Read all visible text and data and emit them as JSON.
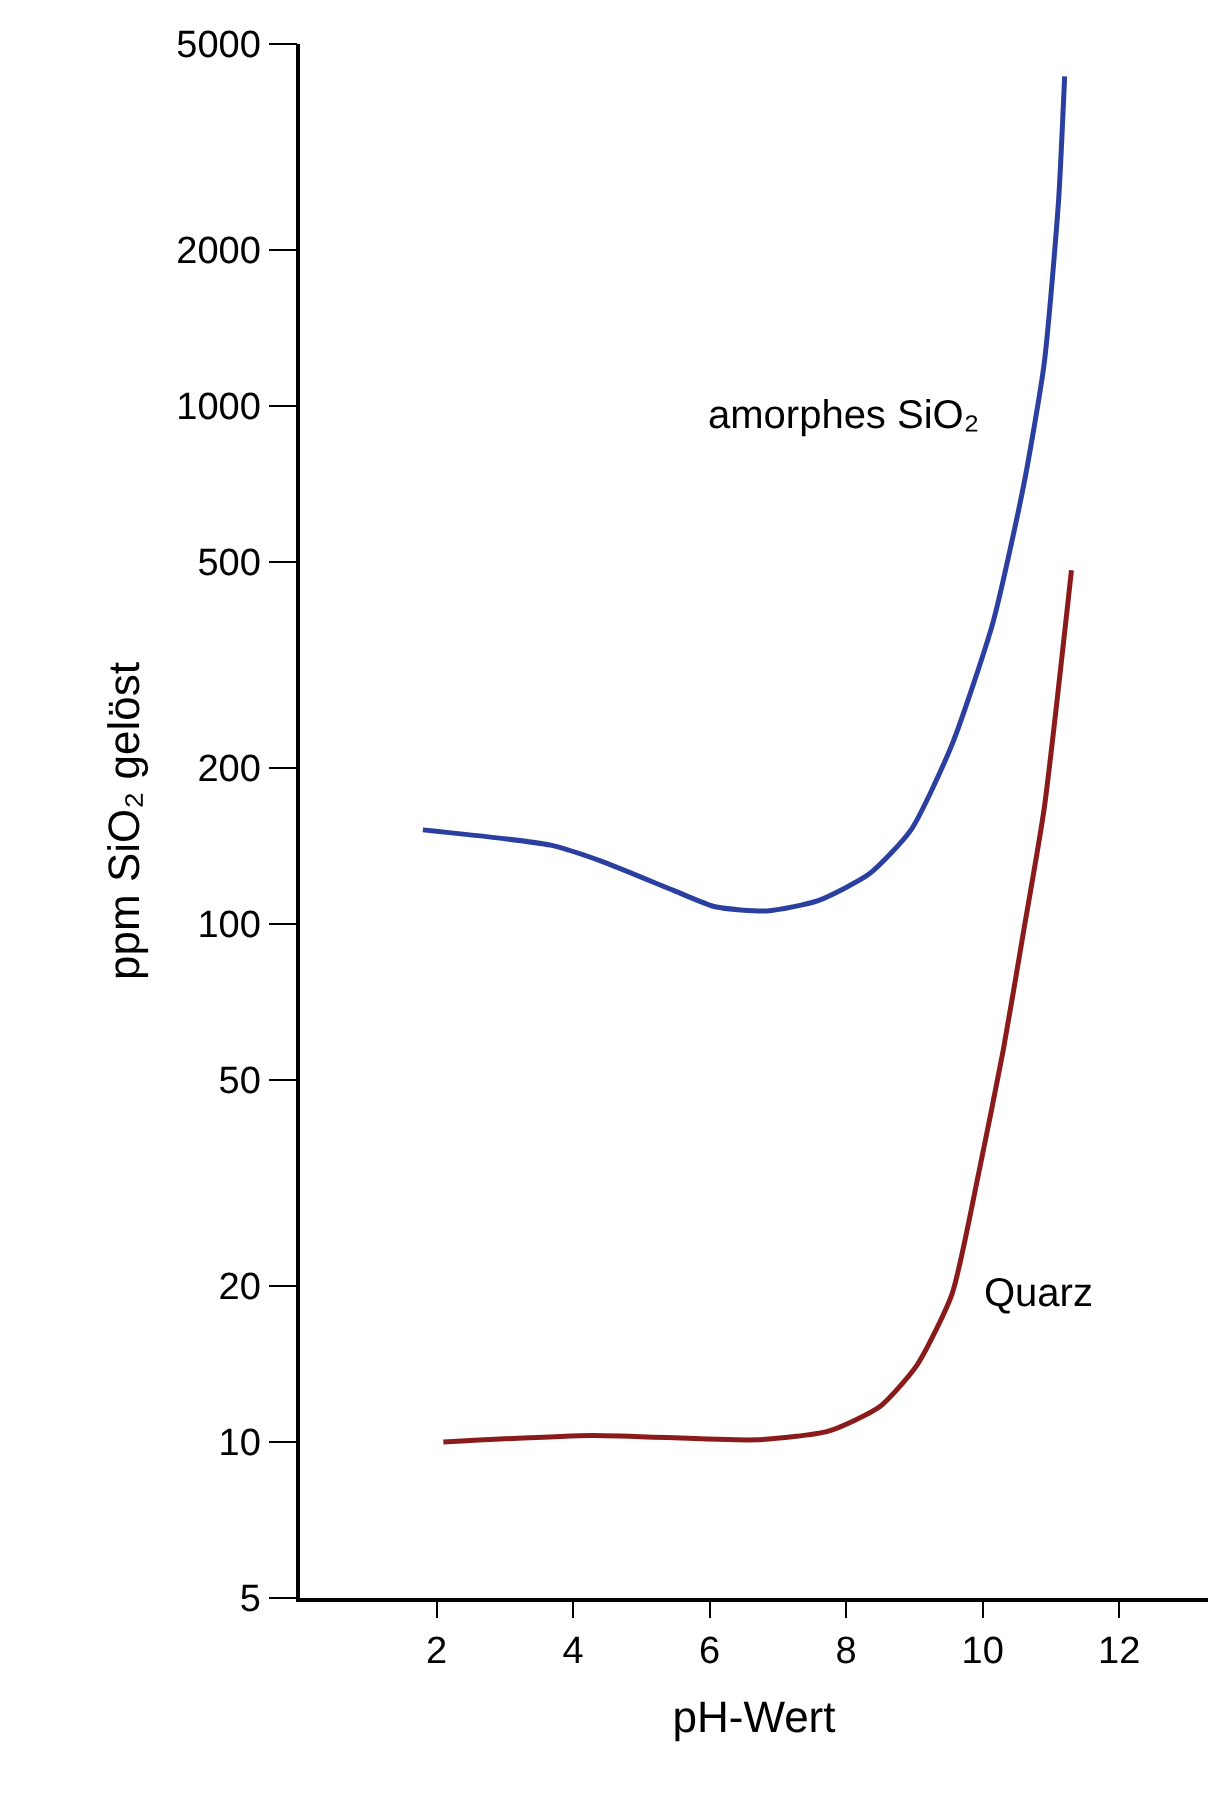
{
  "chart_data": {
    "type": "line",
    "xlabel": "pH-Wert",
    "ylabel": "ppm SiO₂ gelöst",
    "log": "y",
    "xlim": [
      0,
      13.3
    ],
    "xticks": [
      2,
      4,
      6,
      8,
      10,
      12
    ],
    "ylim": [
      5,
      5000
    ],
    "yticks": [
      5,
      10,
      20,
      50,
      100,
      200,
      500,
      1000,
      2000,
      5000
    ],
    "legend": false,
    "marker": "none",
    "line_style": "solid",
    "series": [
      {
        "name": "amorphes SiO₂",
        "color": "#2b3fa0",
        "x": [
          1.8,
          3.67,
          4.43,
          5.48,
          6.08,
          6.84,
          7.59,
          8.34,
          8.95,
          9.55,
          10.15,
          10.6,
          10.9,
          11.11,
          11.2
        ],
        "values": [
          152,
          142,
          132,
          116,
          108,
          106,
          111,
          125,
          152,
          222,
          382,
          703,
          1207,
          2480,
          4330
        ]
      },
      {
        "name": "Quarz",
        "color": "#8b1a1a",
        "x": [
          2.1,
          4.28,
          6.69,
          7.74,
          8.49,
          9.04,
          9.55,
          9.94,
          10.3,
          10.6,
          10.9,
          11.3
        ],
        "values": [
          10,
          10.3,
          10.1,
          10.5,
          11.7,
          14.1,
          19.3,
          33,
          57,
          97,
          167,
          482
        ]
      }
    ]
  }
}
